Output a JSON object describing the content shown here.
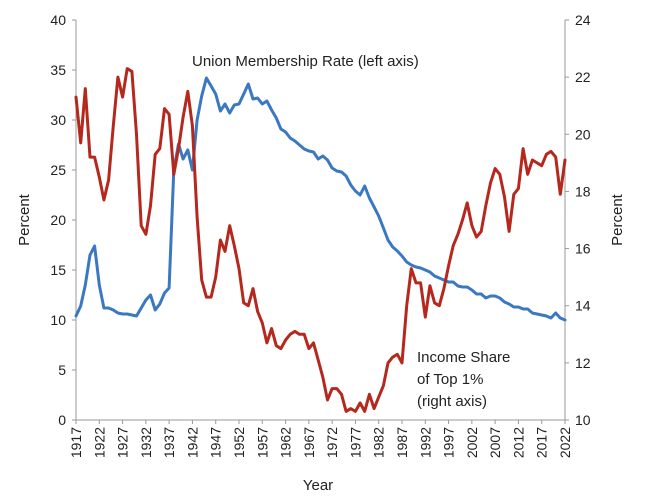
{
  "chart_data": {
    "type": "line",
    "xlabel": "Year",
    "ylabel_left": "Percent",
    "ylabel_right": "Percent",
    "ylim_left": [
      0,
      40
    ],
    "ylim_right": [
      10,
      24
    ],
    "xlim": [
      1917,
      2022
    ],
    "left_ticks": [
      "0",
      "5",
      "10",
      "15",
      "20",
      "25",
      "30",
      "35",
      "40"
    ],
    "right_ticks": [
      "10",
      "12",
      "14",
      "16",
      "18",
      "20",
      "22",
      "24"
    ],
    "x_ticks": [
      "1917",
      "1922",
      "1927",
      "1932",
      "1937",
      "1942",
      "1947",
      "1952",
      "1957",
      "1962",
      "1967",
      "1972",
      "1977",
      "1982",
      "1987",
      "1992",
      "1997",
      "2002",
      "2007",
      "2012",
      "2017",
      "2022"
    ],
    "grid": false,
    "annotations": {
      "union_label": "Union Membership Rate (left axis)",
      "income_label_line1": "Income Share",
      "income_label_line2": "of Top 1%",
      "income_label_line3": "(right axis)"
    },
    "series": [
      {
        "axis": "left",
        "color": "#3a78c2",
        "x": [
          1917,
          1918,
          1919,
          1920,
          1921,
          1922,
          1923,
          1924,
          1925,
          1926,
          1927,
          1928,
          1929,
          1930,
          1931,
          1932,
          1933,
          1934,
          1935,
          1936,
          1937,
          1938,
          1939,
          1940,
          1941,
          1942,
          1943,
          1944,
          1945,
          1946,
          1947,
          1948,
          1949,
          1950,
          1951,
          1952,
          1953,
          1954,
          1955,
          1956,
          1957,
          1958,
          1959,
          1960,
          1961,
          1962,
          1963,
          1964,
          1965,
          1966,
          1967,
          1968,
          1969,
          1970,
          1971,
          1972,
          1973,
          1974,
          1975,
          1976,
          1977,
          1978,
          1979,
          1980,
          1981,
          1982,
          1983,
          1984,
          1985,
          1986,
          1987,
          1988,
          1989,
          1990,
          1991,
          1992,
          1993,
          1994,
          1995,
          1996,
          1997,
          1998,
          1999,
          2000,
          2001,
          2002,
          2003,
          2004,
          2005,
          2006,
          2007,
          2008,
          2009,
          2010,
          2011,
          2012,
          2013,
          2014,
          2015,
          2016,
          2017,
          2018,
          2019,
          2020,
          2021,
          2022
        ],
        "values": [
          10.4,
          11.4,
          13.5,
          16.5,
          17.4,
          13.5,
          11.2,
          11.2,
          11.0,
          10.7,
          10.6,
          10.6,
          10.5,
          10.4,
          11.2,
          12.0,
          12.5,
          11.0,
          11.6,
          12.7,
          13.2,
          25.0,
          27.6,
          26.1,
          27.0,
          25.0,
          30.0,
          32.4,
          34.2,
          33.4,
          32.6,
          30.9,
          31.6,
          30.7,
          31.5,
          31.6,
          32.6,
          33.6,
          32.1,
          32.2,
          31.6,
          31.9,
          31.0,
          30.2,
          29.1,
          28.8,
          28.2,
          27.9,
          27.5,
          27.1,
          26.9,
          26.8,
          26.1,
          26.4,
          26.0,
          25.2,
          24.9,
          24.8,
          24.4,
          23.5,
          22.9,
          22.5,
          23.4,
          22.2,
          21.3,
          20.4,
          19.2,
          18.0,
          17.3,
          16.9,
          16.4,
          15.8,
          15.5,
          15.3,
          15.2,
          15.0,
          14.8,
          14.4,
          14.2,
          14.0,
          13.8,
          13.8,
          13.4,
          13.3,
          13.3,
          13.0,
          12.6,
          12.6,
          12.2,
          12.4,
          12.4,
          12.2,
          11.8,
          11.6,
          11.3,
          11.3,
          11.1,
          11.1,
          10.7,
          10.6,
          10.5,
          10.4,
          10.2,
          10.7,
          10.2,
          10.0
        ]
      },
      {
        "axis": "right",
        "color": "#b5281e",
        "x": [
          1917,
          1918,
          1919,
          1920,
          1921,
          1922,
          1923,
          1924,
          1925,
          1926,
          1927,
          1928,
          1929,
          1930,
          1931,
          1932,
          1933,
          1934,
          1935,
          1936,
          1937,
          1938,
          1939,
          1940,
          1941,
          1942,
          1943,
          1944,
          1945,
          1946,
          1947,
          1948,
          1949,
          1950,
          1951,
          1952,
          1953,
          1954,
          1955,
          1956,
          1957,
          1958,
          1959,
          1960,
          1961,
          1962,
          1963,
          1964,
          1965,
          1966,
          1967,
          1968,
          1969,
          1970,
          1971,
          1972,
          1973,
          1974,
          1975,
          1976,
          1977,
          1978,
          1979,
          1980,
          1981,
          1982,
          1983,
          1984,
          1985,
          1986,
          1987,
          1988,
          1989,
          1990,
          1991,
          1992,
          1993,
          1994,
          1995,
          1996,
          1997,
          1998,
          1999,
          2000,
          2001,
          2002,
          2003,
          2004,
          2005,
          2006,
          2007,
          2008,
          2009,
          2010,
          2011,
          2012,
          2013,
          2014,
          2015,
          2016,
          2017,
          2018,
          2019,
          2020,
          2021,
          2022
        ],
        "values": [
          21.3,
          19.7,
          21.6,
          19.2,
          19.2,
          18.5,
          17.7,
          18.4,
          20.3,
          22.0,
          21.3,
          22.3,
          22.2,
          20.0,
          16.8,
          16.5,
          17.5,
          19.3,
          19.5,
          20.9,
          20.7,
          18.6,
          19.5,
          20.6,
          21.5,
          20.3,
          17.1,
          14.9,
          14.3,
          14.3,
          15.0,
          16.3,
          15.9,
          16.8,
          16.1,
          15.3,
          14.1,
          14.0,
          14.6,
          13.8,
          13.4,
          12.7,
          13.2,
          12.6,
          12.5,
          12.8,
          13.0,
          13.1,
          13.0,
          13.0,
          12.5,
          12.7,
          12.1,
          11.5,
          10.7,
          11.1,
          11.1,
          10.9,
          10.3,
          10.4,
          10.3,
          10.6,
          10.3,
          10.9,
          10.4,
          10.8,
          11.2,
          12.0,
          12.2,
          12.3,
          12.0,
          14.0,
          15.3,
          14.8,
          14.8,
          13.6,
          14.7,
          14.1,
          14.0,
          14.6,
          15.4,
          16.1,
          16.5,
          17.0,
          17.6,
          16.8,
          16.4,
          16.6,
          17.5,
          18.3,
          18.8,
          18.6,
          17.8,
          16.6,
          17.9,
          18.1,
          19.5,
          18.6,
          19.1,
          19.0,
          18.9,
          19.3,
          19.4,
          19.2,
          17.9,
          19.1
        ]
      }
    ]
  }
}
